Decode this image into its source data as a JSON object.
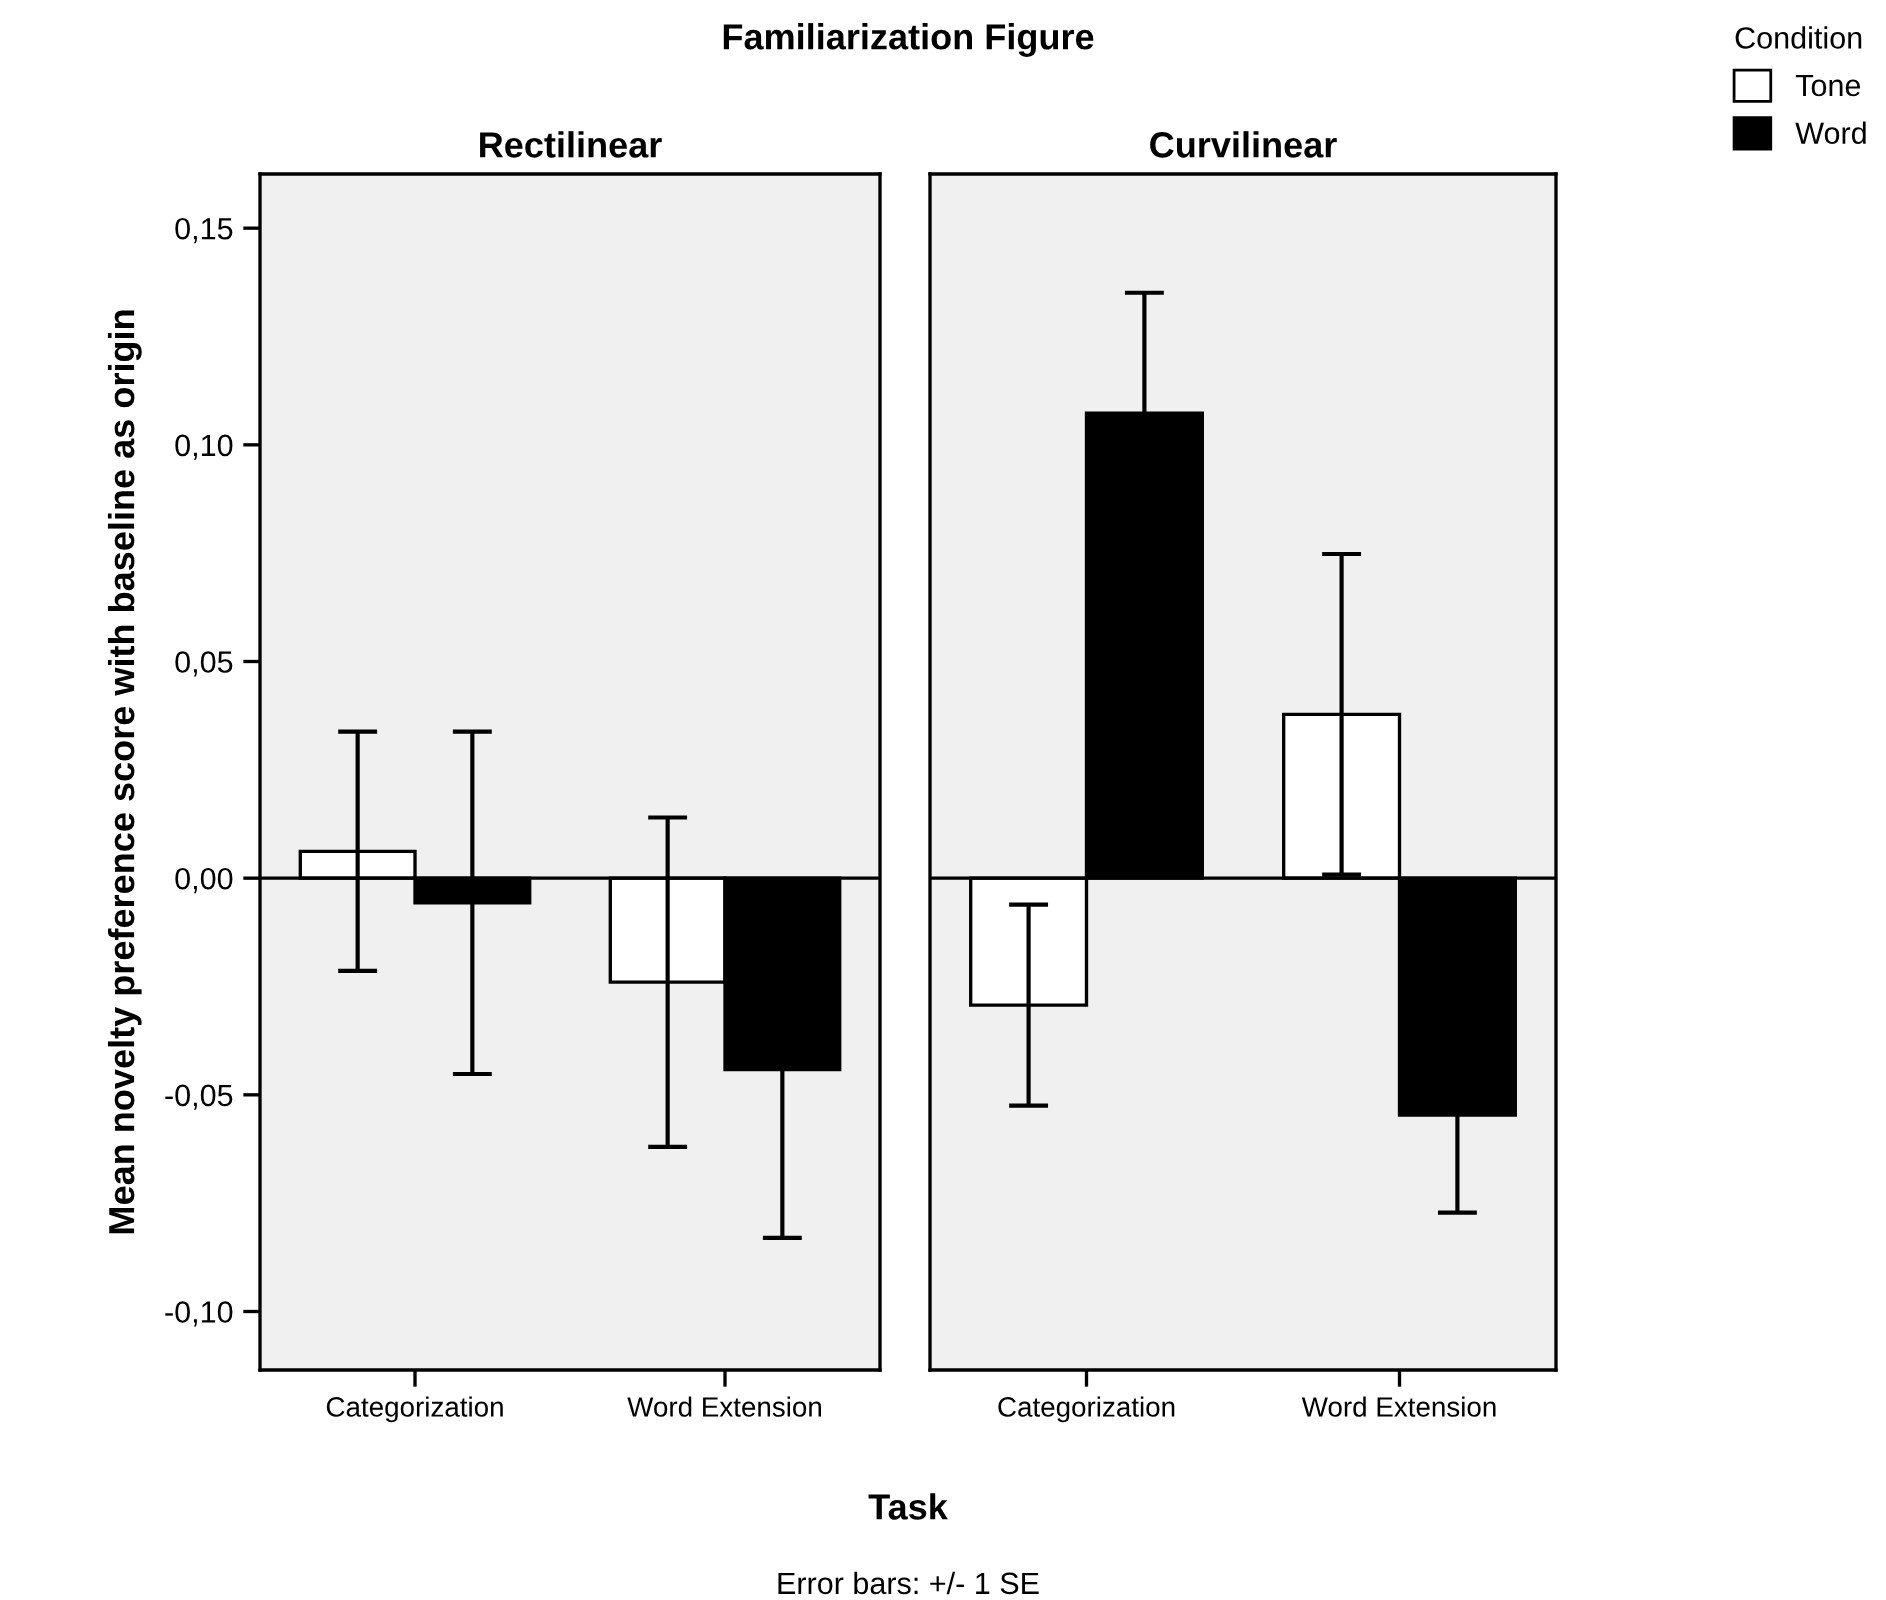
{
  "chart_data": [
    {
      "type": "bar",
      "title": "Rectilinear",
      "xlabel": "Task",
      "legend_title": "Condition",
      "legend": "top right",
      "ylabel": "Mean novelty preference score with baseline as origin",
      "annotations": [
        "Familiarization Figure",
        "Error bars: +/- 1 SE"
      ],
      "categories": [
        "Categorization",
        "Word Extension"
      ],
      "series": [
        {
          "name": "Tone",
          "color": "#ffffff",
          "values": [
            0.0062,
            -0.024
          ],
          "errors": [
            0.0276,
            0.038
          ]
        },
        {
          "name": "Word",
          "color": "#000000",
          "values": [
            -0.0057,
            -0.0442
          ],
          "errors": [
            0.0395,
            0.0388
          ]
        }
      ],
      "ylim": [
        -0.1135,
        0.1625
      ],
      "yticks": [
        {
          "value": -0.1,
          "label": "-0,10"
        },
        {
          "value": -0.05,
          "label": "-0,05"
        },
        {
          "value": 0,
          "label": "0,00"
        },
        {
          "value": 0.05,
          "label": "0,05"
        },
        {
          "value": 0.1,
          "label": "0,10"
        },
        {
          "value": 0.15,
          "label": "0,15"
        }
      ],
      "ref_lines": [
        {
          "axis": "y",
          "value": 0,
          "color": "#000000"
        }
      ],
      "grid": false
    },
    {
      "type": "bar",
      "title": "Curvilinear",
      "categories": [
        "Categorization",
        "Word Extension"
      ],
      "series": [
        {
          "color": "#ffffff",
          "values": [
            -0.0293,
            0.0378
          ],
          "errors": [
            0.0232,
            0.037
          ]
        },
        {
          "color": "#000000",
          "values": [
            0.1073,
            -0.0547
          ],
          "errors": [
            0.0278,
            0.0225
          ]
        }
      ],
      "ylim": [
        -0.1135,
        0.1625
      ],
      "tick_labels": "x",
      "ref_lines": [
        {
          "axis": "y",
          "value": 0,
          "color": "#000000"
        }
      ],
      "grid": false
    }
  ]
}
